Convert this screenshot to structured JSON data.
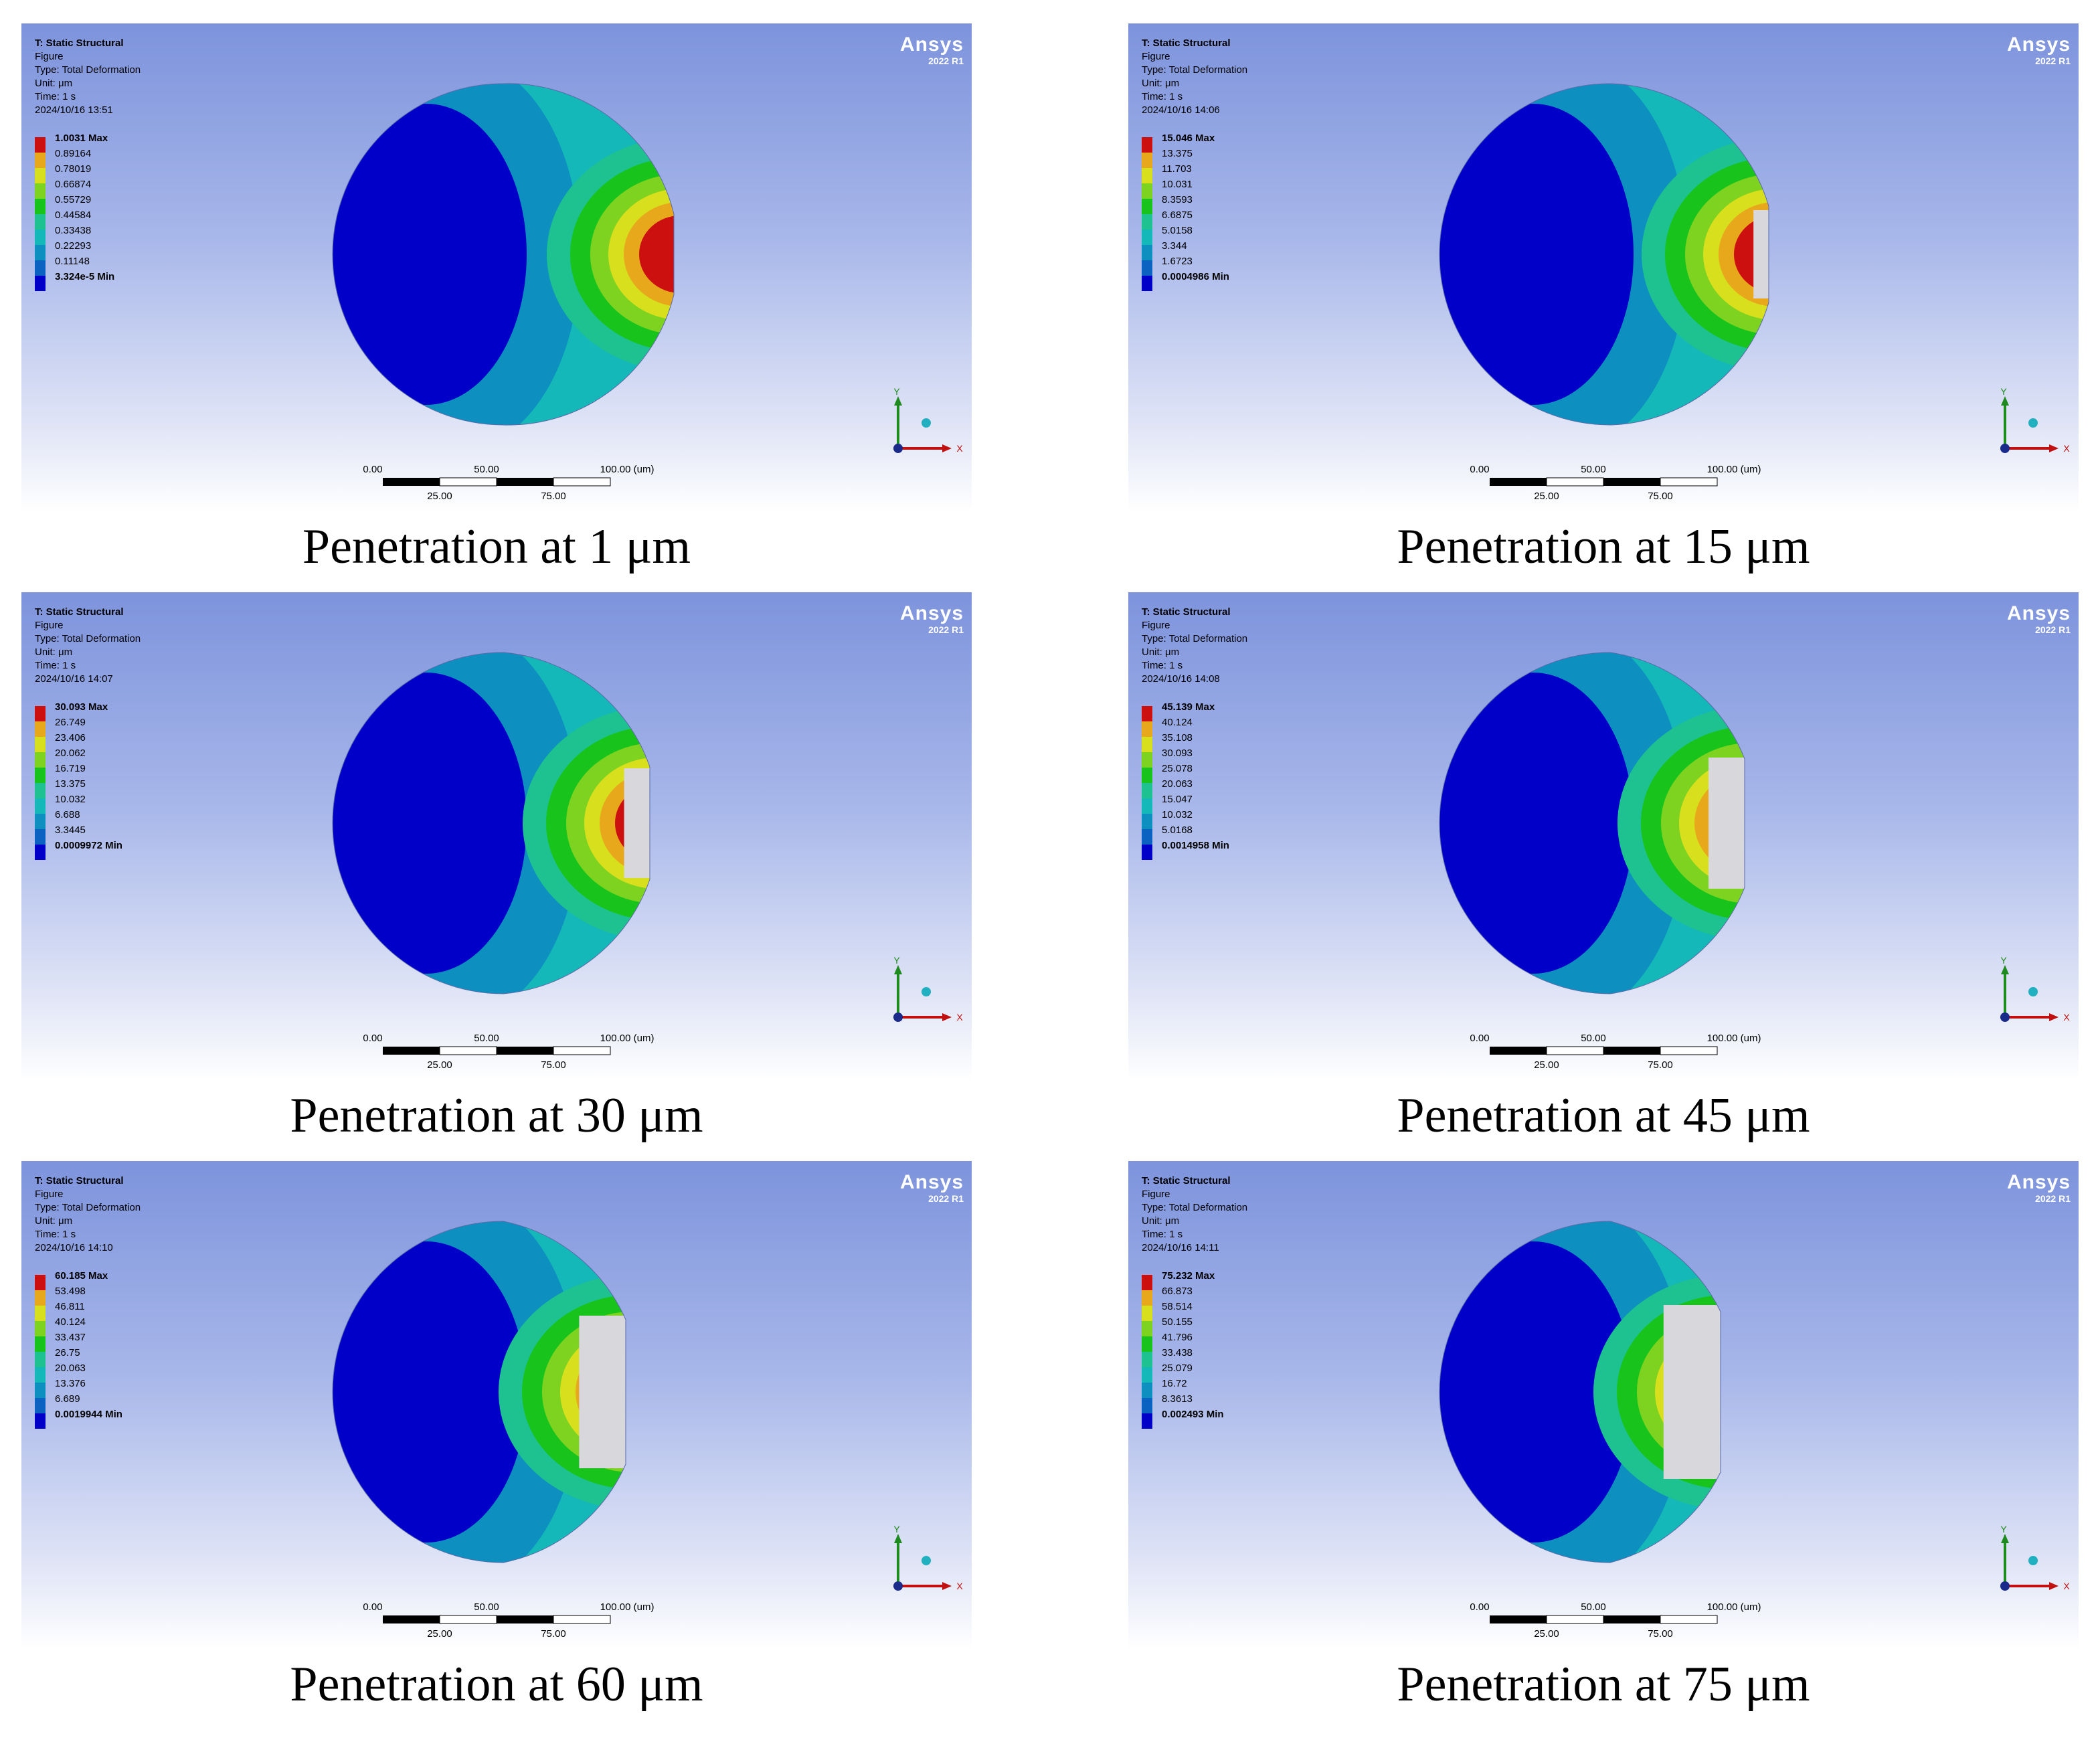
{
  "colors": {
    "contour": [
      "#0000c8",
      "#0b62c0",
      "#0d8fc0",
      "#14b8b8",
      "#1dc290",
      "#18c41c",
      "#7ed320",
      "#d8df1c",
      "#e7a81c",
      "#cc1010"
    ],
    "viewport_top": "#7d93dc",
    "viewport_bottom": "#ffffff",
    "contact": "#d8d8dc"
  },
  "icons": {
    "triad": "xyz-triad-icon",
    "logo": "ansys-logo"
  },
  "panels": [
    {
      "header": [
        "T: Static Structural",
        "Figure",
        "Type: Total Deformation",
        "Unit: μm",
        "Time: 1 s",
        "2024/10/16 13:51"
      ],
      "legend": [
        "1.0031 Max",
        "0.89164",
        "0.78019",
        "0.66874",
        "0.55729",
        "0.44584",
        "0.33438",
        "0.22293",
        "0.11148",
        "3.324e-5 Min"
      ],
      "logo": "Ansys",
      "logo_version": "2022 R1",
      "scale_top": [
        "0.00",
        "50.00",
        "100.00 (um)"
      ],
      "scale_bottom": [
        "25.00",
        "75.00"
      ],
      "axis_x": "X",
      "axis_y": "Y",
      "caption": "Penetration at 1 μm"
    },
    {
      "header": [
        "T: Static Structural",
        "Figure",
        "Type: Total Deformation",
        "Unit: μm",
        "Time: 1 s",
        "2024/10/16 14:06"
      ],
      "legend": [
        "15.046 Max",
        "13.375",
        "11.703",
        "10.031",
        "8.3593",
        "6.6875",
        "5.0158",
        "3.344",
        "1.6723",
        "0.0004986 Min"
      ],
      "logo": "Ansys",
      "logo_version": "2022 R1",
      "scale_top": [
        "0.00",
        "50.00",
        "100.00 (um)"
      ],
      "scale_bottom": [
        "25.00",
        "75.00"
      ],
      "axis_x": "X",
      "axis_y": "Y",
      "caption": "Penetration at 15 μm"
    },
    {
      "header": [
        "T: Static Structural",
        "Figure",
        "Type: Total Deformation",
        "Unit: μm",
        "Time: 1 s",
        "2024/10/16 14:07"
      ],
      "legend": [
        "30.093 Max",
        "26.749",
        "23.406",
        "20.062",
        "16.719",
        "13.375",
        "10.032",
        "6.688",
        "3.3445",
        "0.0009972 Min"
      ],
      "logo": "Ansys",
      "logo_version": "2022 R1",
      "scale_top": [
        "0.00",
        "50.00",
        "100.00 (um)"
      ],
      "scale_bottom": [
        "25.00",
        "75.00"
      ],
      "axis_x": "X",
      "axis_y": "Y",
      "caption": "Penetration at 30 μm"
    },
    {
      "header": [
        "T: Static Structural",
        "Figure",
        "Type: Total Deformation",
        "Unit: μm",
        "Time: 1 s",
        "2024/10/16 14:08"
      ],
      "legend": [
        "45.139 Max",
        "40.124",
        "35.108",
        "30.093",
        "25.078",
        "20.063",
        "15.047",
        "10.032",
        "5.0168",
        "0.0014958 Min"
      ],
      "logo": "Ansys",
      "logo_version": "2022 R1",
      "scale_top": [
        "0.00",
        "50.00",
        "100.00 (um)"
      ],
      "scale_bottom": [
        "25.00",
        "75.00"
      ],
      "axis_x": "X",
      "axis_y": "Y",
      "caption": "Penetration at 45 μm"
    },
    {
      "header": [
        "T: Static Structural",
        "Figure",
        "Type: Total Deformation",
        "Unit: μm",
        "Time: 1 s",
        "2024/10/16 14:10"
      ],
      "legend": [
        "60.185 Max",
        "53.498",
        "46.811",
        "40.124",
        "33.437",
        "26.75",
        "20.063",
        "13.376",
        "6.689",
        "0.0019944 Min"
      ],
      "logo": "Ansys",
      "logo_version": "2022 R1",
      "scale_top": [
        "0.00",
        "50.00",
        "100.00 (um)"
      ],
      "scale_bottom": [
        "25.00",
        "75.00"
      ],
      "axis_x": "X",
      "axis_y": "Y",
      "caption": "Penetration at 60 μm"
    },
    {
      "header": [
        "T: Static Structural",
        "Figure",
        "Type: Total Deformation",
        "Unit: μm",
        "Time: 1 s",
        "2024/10/16 14:11"
      ],
      "legend": [
        "75.232 Max",
        "66.873",
        "58.514",
        "50.155",
        "41.796",
        "33.438",
        "25.079",
        "16.72",
        "8.3613",
        "0.002493 Min"
      ],
      "logo": "Ansys",
      "logo_version": "2022 R1",
      "scale_top": [
        "0.00",
        "50.00",
        "100.00 (um)"
      ],
      "scale_bottom": [
        "25.00",
        "75.00"
      ],
      "axis_x": "X",
      "axis_y": "Y",
      "caption": "Penetration at 75 μm"
    }
  ]
}
